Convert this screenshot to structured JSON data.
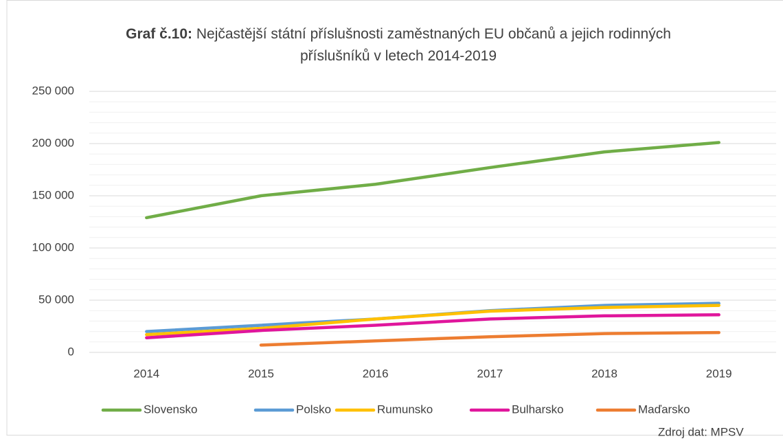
{
  "chart_data": {
    "type": "line",
    "title_prefix": "Graf č.10:",
    "title": "Nejčastější státní příslušnosti zaměstnaných EU občanů a jejich rodinných příslušníků v letech 2014-2019",
    "source": "Zdroj dat: MPSV",
    "categories": [
      "2014",
      "2015",
      "2016",
      "2017",
      "2018",
      "2019"
    ],
    "series": [
      {
        "name": "Slovensko",
        "color": "#70ad47",
        "values": [
          129000,
          150000,
          161000,
          177000,
          192000,
          201000
        ]
      },
      {
        "name": "Polsko",
        "color": "#5b9bd5",
        "values": [
          20000,
          26000,
          32000,
          40000,
          45000,
          47000
        ]
      },
      {
        "name": "Rumunsko",
        "color": "#ffc000",
        "values": [
          17000,
          23000,
          32000,
          39500,
          43000,
          45000
        ]
      },
      {
        "name": "Bulharsko",
        "color": "#e0169c",
        "values": [
          14000,
          21000,
          26000,
          32000,
          35000,
          36000
        ]
      },
      {
        "name": "Maďarsko",
        "color": "#ed7d31",
        "values": [
          null,
          7000,
          11000,
          15000,
          18000,
          19000
        ]
      }
    ],
    "ylim": [
      0,
      250000
    ],
    "yticks": [
      0,
      {
        "value": 50000,
        "label": "50 000"
      },
      {
        "value": 100000,
        "label": "100 000"
      },
      {
        "value": 150000,
        "label": "150 000"
      },
      {
        "value": 200000,
        "label": "200 000"
      },
      {
        "value": 250000,
        "label": "250 000"
      }
    ],
    "grid": true,
    "legend": "bottom"
  }
}
